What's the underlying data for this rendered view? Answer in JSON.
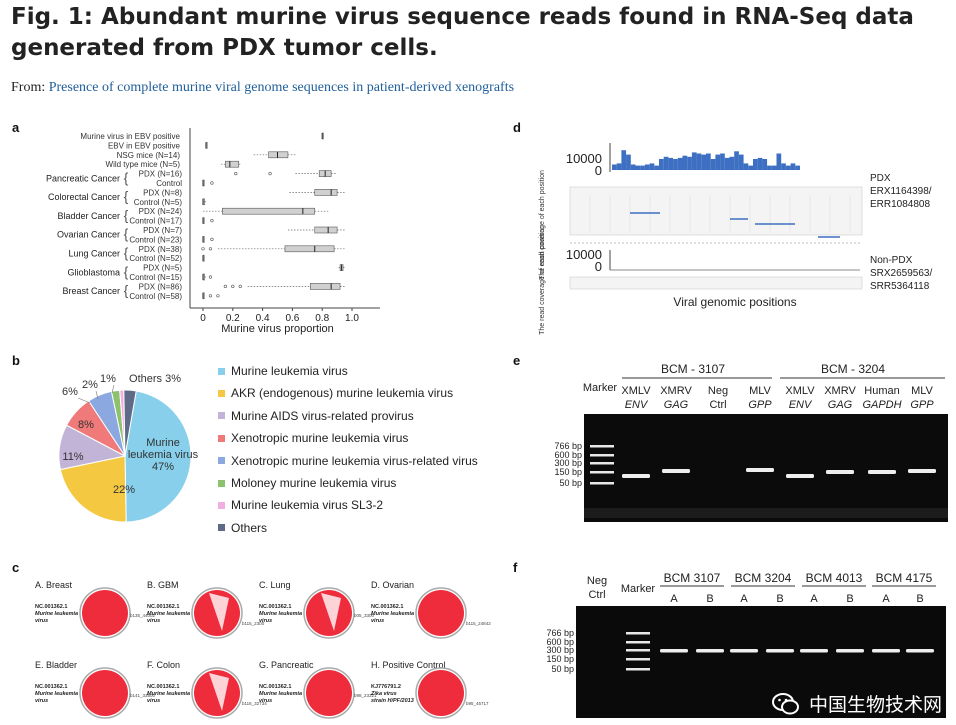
{
  "figure": {
    "title": "Fig. 1: Abundant murine virus sequence reads found in RNA-Seq data generated from PDX tumor cells.",
    "from_prefix": "From:",
    "from_link": "Presence of complete murine viral genome sequences in patient-derived xenografts"
  },
  "panel_a": {
    "label": "a",
    "rows": [
      {
        "label": "Murine virus in EBV positive",
        "min": 0.8,
        "q1": 0.8,
        "median": 0.8,
        "q3": 0.8,
        "max": 0.8,
        "outliers": []
      },
      {
        "label": "EBV in EBV positive",
        "min": 0.02,
        "q1": 0.02,
        "median": 0.02,
        "q3": 0.02,
        "max": 0.02,
        "outliers": []
      },
      {
        "label": "NSG mice (N=14)",
        "min": 0.34,
        "q1": 0.44,
        "median": 0.5,
        "q3": 0.57,
        "max": 0.63,
        "outliers": []
      },
      {
        "label": "Wild type mice (N=5)",
        "min": 0.12,
        "q1": 0.15,
        "median": 0.18,
        "q3": 0.24,
        "max": 0.26,
        "outliers": []
      },
      {
        "label": "PDX (N=16)",
        "min": 0.62,
        "q1": 0.78,
        "median": 0.82,
        "q3": 0.86,
        "max": 0.9,
        "outliers": [
          0.22,
          0.45
        ]
      },
      {
        "label": "Control",
        "min": 0.0,
        "q1": 0.0,
        "median": 0.0,
        "q3": 0.0,
        "max": 0.0,
        "outliers": [
          0.06
        ]
      },
      {
        "label": "PDX (N=8)",
        "min": 0.58,
        "q1": 0.75,
        "median": 0.86,
        "q3": 0.9,
        "max": 0.95,
        "outliers": []
      },
      {
        "label": "Control (N=5)",
        "min": 0.0,
        "q1": 0.0,
        "median": 0.0,
        "q3": 0.01,
        "max": 0.02,
        "outliers": []
      },
      {
        "label": "PDX (N=24)",
        "min": 0.0,
        "q1": 0.13,
        "median": 0.67,
        "q3": 0.75,
        "max": 0.85,
        "outliers": []
      },
      {
        "label": "Control (N=17)",
        "min": 0.0,
        "q1": 0.0,
        "median": 0.0,
        "q3": 0.0,
        "max": 0.0,
        "outliers": [
          0.06
        ]
      },
      {
        "label": "PDX (N=7)",
        "min": 0.57,
        "q1": 0.75,
        "median": 0.84,
        "q3": 0.9,
        "max": 0.95,
        "outliers": []
      },
      {
        "label": "Control (N=23)",
        "min": 0.0,
        "q1": 0.0,
        "median": 0.0,
        "q3": 0.0,
        "max": 0.0,
        "outliers": [
          0.06
        ]
      },
      {
        "label": "PDX (N=38)",
        "min": 0.1,
        "q1": 0.55,
        "median": 0.75,
        "q3": 0.88,
        "max": 0.95,
        "outliers": [
          0.0,
          0.05
        ]
      },
      {
        "label": "Control (N=52)",
        "min": 0.0,
        "q1": 0.0,
        "median": 0.0,
        "q3": 0.0,
        "max": 0.0,
        "outliers": []
      },
      {
        "label": "PDX (N=5)",
        "min": 0.91,
        "q1": 0.92,
        "median": 0.93,
        "q3": 0.94,
        "max": 0.95,
        "outliers": []
      },
      {
        "label": "Control (N=15)",
        "min": 0.0,
        "q1": 0.0,
        "median": 0.0,
        "q3": 0.01,
        "max": 0.02,
        "outliers": [
          0.05
        ]
      },
      {
        "label": "PDX (N=86)",
        "min": 0.3,
        "q1": 0.72,
        "median": 0.86,
        "q3": 0.92,
        "max": 0.96,
        "outliers": [
          0.15,
          0.2,
          0.25
        ]
      },
      {
        "label": "Control (N=58)",
        "min": 0.0,
        "q1": 0.0,
        "median": 0.0,
        "q3": 0.0,
        "max": 0.02,
        "outliers": [
          0.05,
          0.1
        ]
      }
    ],
    "groups": [
      "Pancreatic Cancer",
      "Colorectal Cancer",
      "Bladder Cancer",
      "Ovarian Cancer",
      "Lung Cancer",
      "Glioblastoma",
      "Breast Cancer"
    ],
    "xticks": [
      "0",
      "0.2",
      "0.4",
      "0.6",
      "0.8",
      "1.0"
    ],
    "xlabel": "Murine virus proportion"
  },
  "panel_b": {
    "label": "b",
    "chart_data": {
      "type": "pie",
      "slices": [
        {
          "label": "Murine leukemia virus",
          "value": 47,
          "color": "#87cfea"
        },
        {
          "label": "AKR (endogenous) murine leukemia virus",
          "value": 22,
          "color": "#f5c842"
        },
        {
          "label": "Murine AIDS virus-related provirus",
          "value": 11,
          "color": "#c2b4d6"
        },
        {
          "label": "Xenotropic murine leukemia virus",
          "value": 8,
          "color": "#f07a7a"
        },
        {
          "label": "Xenotropic murine leukemia virus-related virus",
          "value": 6,
          "color": "#8ca8e0"
        },
        {
          "label": "Moloney murine leukemia virus",
          "value": 2,
          "color": "#8cc26e"
        },
        {
          "label": "Murine leukemia virus SL3-2",
          "value": 1,
          "color": "#f2aee0"
        },
        {
          "label": "Others",
          "value": 3,
          "color": "#5e6a86"
        }
      ],
      "slice_labels": [
        "47%",
        "22%",
        "11%",
        "8%",
        "6%",
        "2%",
        "1%",
        "Others 3%"
      ],
      "center_text": [
        "Murine",
        "leukemia virus"
      ]
    }
  },
  "panel_c": {
    "label": "c",
    "items": [
      {
        "title": "A. Breast",
        "sub": "NC.001362.1 Murine leukemia virus",
        "tag": "b135_44002"
      },
      {
        "title": "B. GBM",
        "sub": "NC.001362.1 Murine leukemia virus",
        "tag": "b115_2300"
      },
      {
        "title": "C. Lung",
        "sub": "NC.001362.1 Murine leukemia virus",
        "tag": "b05_3300"
      },
      {
        "title": "D. Ovarian",
        "sub": "NC.001362.1 Murine leukemia virus",
        "tag": "b115_24842"
      },
      {
        "title": "E. Bladder",
        "sub": "NC.001362.1 Murine leukemia virus",
        "tag": "b141_33500"
      },
      {
        "title": "F. Colon",
        "sub": "NC.001362.1 Murine leukemia virus",
        "tag": "b116_32734"
      },
      {
        "title": "G. Pancreatic",
        "sub": "NC.001362.1 Murine leukemia virus",
        "tag": "b98_23321"
      },
      {
        "title": "H. Positive Control",
        "sub": "KJ776791.2 Zika virus strain H/PF/2013",
        "tag": "b95_45717"
      }
    ]
  },
  "panel_d": {
    "label": "d",
    "ylabel": "The read coverage of each position",
    "y_max": "10000",
    "y_min": "0",
    "pdx_label": [
      "PDX",
      "ERX1164398/",
      "ERR1084808"
    ],
    "nonpdx_label": [
      "Non-PDX",
      "SRX2659563/",
      "SRR5364118"
    ],
    "xlabel": "Viral genomic positions",
    "coverage": [
      0.25,
      0.3,
      0.9,
      0.7,
      0.25,
      0.2,
      0.2,
      0.25,
      0.3,
      0.2,
      0.5,
      0.6,
      0.55,
      0.5,
      0.55,
      0.65,
      0.6,
      0.8,
      0.75,
      0.7,
      0.75,
      0.5,
      0.7,
      0.75,
      0.55,
      0.6,
      0.85,
      0.7,
      0.3,
      0.2,
      0.5,
      0.55,
      0.5,
      0.2,
      0.2,
      0.75,
      0.3,
      0.2,
      0.3,
      0.2
    ]
  },
  "panel_e": {
    "label": "e",
    "groups": [
      "BCM - 3107",
      "BCM - 3204"
    ],
    "lanes": [
      {
        "top": "Marker",
        "bottom": ""
      },
      {
        "top": "XMLV",
        "bottom": "ENV"
      },
      {
        "top": "XMRV",
        "bottom": "GAG"
      },
      {
        "top": "Neg",
        "bottom": "Ctrl"
      },
      {
        "top": "MLV",
        "bottom": "GPP"
      },
      {
        "top": "XMLV",
        "bottom": "ENV"
      },
      {
        "top": "XMRV",
        "bottom": "GAG"
      },
      {
        "top": "Human",
        "bottom": "GAPDH"
      },
      {
        "top": "MLV",
        "bottom": "GPP"
      }
    ],
    "ladder": [
      "766 bp",
      "600 bp",
      "300 bp",
      "150 bp",
      "50 bp"
    ]
  },
  "panel_f": {
    "label": "f",
    "neg": [
      "Neg",
      "Ctrl"
    ],
    "marker": "Marker",
    "groups": [
      "BCM 3107",
      "BCM 3204",
      "BCM 4013",
      "BCM 4175"
    ],
    "sublanes": [
      "A",
      "B",
      "A",
      "B",
      "A",
      "B",
      "A",
      "B"
    ],
    "ladder": [
      "766 bp",
      "600 bp",
      "300 bp",
      "150 bp",
      "50 bp"
    ]
  },
  "watermark": {
    "text": "中国生物技术网",
    "icon": "wechat-icon"
  }
}
